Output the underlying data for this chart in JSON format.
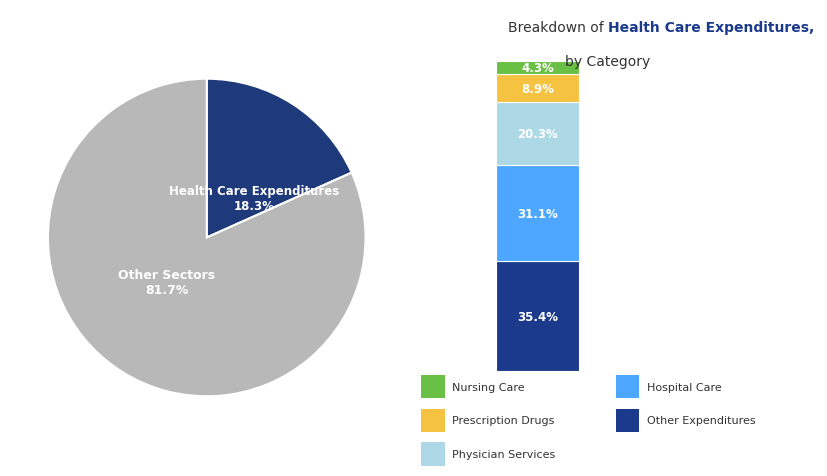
{
  "pie_values": [
    18.3,
    81.7
  ],
  "pie_colors": [
    "#1F3A7A",
    "#B8B8B8"
  ],
  "pie_label_hce": "Health Care Expenditures\n18.3%",
  "pie_label_other": "Other Sectors\n81.7%",
  "pie_label_hce_color": "white",
  "pie_label_other_color": "white",
  "bar_values": [
    35.4,
    31.1,
    20.3,
    8.9,
    4.3
  ],
  "bar_colors": [
    "#1B3A8C",
    "#4DA6FF",
    "#ADD8E6",
    "#F5C242",
    "#6ABF45"
  ],
  "bar_labels": [
    "35.4%",
    "31.1%",
    "20.3%",
    "8.9%",
    "4.3%"
  ],
  "title_prefix": "Breakdown of ",
  "title_highlight": "Health Care Expenditures",
  "title_suffix": ",",
  "title_line2": "by Category",
  "title_normal_color": "#333333",
  "title_highlight_color": "#1B3A8C",
  "legend_items": [
    {
      "label": "Nursing Care",
      "color": "#6ABF45"
    },
    {
      "label": "Prescription Drugs",
      "color": "#F5C242"
    },
    {
      "label": "Physician Services",
      "color": "#ADD8E6"
    },
    {
      "label": "Hospital Care",
      "color": "#4DA6FF"
    },
    {
      "label": "Other Expenditures",
      "color": "#1B3A8C"
    }
  ],
  "background_color": "#FFFFFF"
}
